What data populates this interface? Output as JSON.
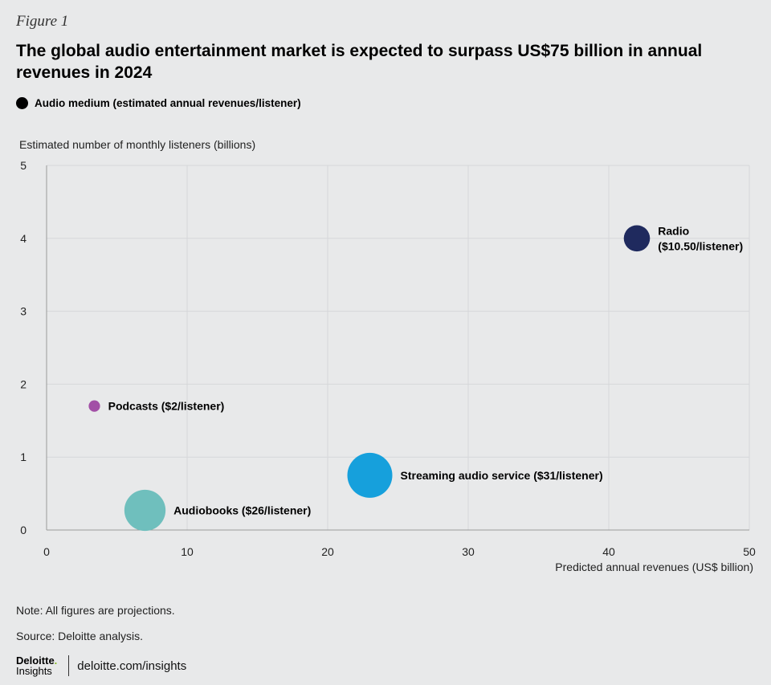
{
  "figure_label": "Figure 1",
  "title": "The global audio entertainment market is expected to surpass US$75 billion in annual revenues in 2024",
  "legend": {
    "label": "Audio medium (estimated annual revenues/listener)"
  },
  "note": "Note: All figures are projections.",
  "source": "Source: Deloitte analysis.",
  "footer": {
    "brand_name": "Deloitte",
    "brand_dot": ".",
    "brand_sub": "Insights",
    "url": "deloitte.com/insights"
  },
  "colors": {
    "background": "#e8e9ea",
    "grid": "#d6d7d9",
    "axis": "#9a9a9a"
  },
  "chart_data": {
    "type": "scatter",
    "xlabel": "Predicted annual revenues (US$ billion)",
    "ylabel": "Estimated number of monthly listeners (billions)",
    "xlim": [
      0,
      50
    ],
    "ylim": [
      0,
      5
    ],
    "xticks": [
      0,
      10,
      20,
      30,
      40,
      50
    ],
    "yticks": [
      0,
      1,
      2,
      3,
      4,
      5
    ],
    "grid": true,
    "legend_position": "top-left",
    "series": [
      {
        "label": "Radio ($10.50/listener)",
        "label_lines": [
          "Radio",
          "($10.50/listener)"
        ],
        "x": 42,
        "y": 4.0,
        "revenue_per_listener": 10.5,
        "color": "#1f2a5e",
        "label_side": "right"
      },
      {
        "label": "Podcasts ($2/listener)",
        "label_lines": [
          "Podcasts ($2/listener)"
        ],
        "x": 3.4,
        "y": 1.7,
        "revenue_per_listener": 2,
        "color": "#a24fa6",
        "label_side": "right"
      },
      {
        "label": "Streaming audio service ($31/listener)",
        "label_lines": [
          "Streaming audio service ($31/listener)"
        ],
        "x": 23,
        "y": 0.75,
        "revenue_per_listener": 31,
        "color": "#16a0dc",
        "label_side": "right"
      },
      {
        "label": "Audiobooks ($26/listener)",
        "label_lines": [
          "Audiobooks ($26/listener)"
        ],
        "x": 7,
        "y": 0.27,
        "revenue_per_listener": 26,
        "color": "#6fbfbd",
        "label_side": "right"
      }
    ]
  }
}
